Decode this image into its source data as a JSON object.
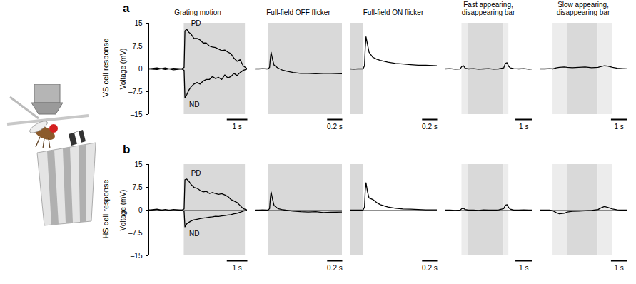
{
  "chart_data": [
    {
      "type": "line",
      "panel": "a",
      "row_label": "VS cell response",
      "title": "Grating motion",
      "y_label": "Voltage (mV)",
      "ylim": [
        -15,
        15
      ],
      "yticks": [
        15,
        7.5,
        0,
        {
          "value": -7.5,
          "label": "–7.5"
        },
        {
          "value": -15,
          "label": "–15"
        }
      ],
      "tick_labels": "y",
      "x": [
        0,
        0.4,
        0.8,
        1.2,
        1.6,
        1.72,
        1.76,
        1.85,
        1.95,
        2.05,
        2.2,
        2.35,
        2.5,
        2.65,
        2.8,
        2.95,
        3.1,
        3.25,
        3.4,
        3.55,
        3.7,
        3.85,
        4.0,
        4.15,
        4.3,
        4.45,
        4.6,
        4.8
      ],
      "series": [
        {
          "name": "PD",
          "color": "#000000",
          "values": [
            0,
            0.3,
            -0.2,
            0.2,
            0,
            0.5,
            12.5,
            13,
            12,
            11.5,
            10,
            10,
            9.5,
            8.5,
            8.5,
            7.5,
            7.2,
            7.0,
            6.5,
            6.0,
            6.2,
            5.5,
            5.0,
            3.5,
            2.5,
            3.0,
            1.0,
            0
          ]
        },
        {
          "name": "ND",
          "color": "#000000",
          "values": [
            0,
            -0.2,
            0.3,
            -0.3,
            0,
            -0.5,
            -9.5,
            -8.5,
            -7,
            -6,
            -5,
            -4.5,
            -5,
            -4,
            -3.5,
            -3.5,
            -2.5,
            -3.2,
            -2.8,
            -3.5,
            -2.0,
            -3.0,
            -2.5,
            -1.5,
            -2.2,
            -1.2,
            -0.5,
            0
          ]
        }
      ],
      "stimulus": [
        {
          "x1": 1.72,
          "x2": 4.7,
          "color": "#d9d9d9"
        }
      ],
      "scale_bar": {
        "value": 1,
        "label": "1 s"
      }
    },
    {
      "type": "line",
      "title": "Full-field OFF flicker",
      "ylim": [
        -15,
        15
      ],
      "tick_labels": false,
      "x": [
        0,
        0.05,
        0.1,
        0.15,
        0.17,
        0.19,
        0.2,
        0.21,
        0.23,
        0.25,
        0.3,
        0.35,
        0.4,
        0.5,
        0.6,
        0.7,
        0.8,
        0.9,
        1.0,
        1.15
      ],
      "series": [
        {
          "color": "#000000",
          "values": [
            0,
            0,
            0.1,
            0,
            0,
            0.5,
            3.5,
            5.5,
            3,
            1.2,
            0.3,
            -0.3,
            -0.7,
            -1.2,
            -1.5,
            -1.5,
            -1.6,
            -1.5,
            -1.5,
            -1.6
          ]
        }
      ],
      "stimulus": [
        {
          "x1": 0.17,
          "x2": 1.15,
          "color": "#d9d9d9"
        }
      ],
      "scale_bar": {
        "value": 0.2,
        "label": "0.2 s"
      }
    },
    {
      "type": "line",
      "title": "Full-field ON flicker",
      "ylim": [
        -15,
        15
      ],
      "tick_labels": false,
      "x": [
        0,
        0.05,
        0.1,
        0.15,
        0.17,
        0.19,
        0.2,
        0.21,
        0.23,
        0.25,
        0.3,
        0.35,
        0.4,
        0.5,
        0.6,
        0.7,
        0.8,
        0.9,
        1.0,
        1.15
      ],
      "series": [
        {
          "color": "#000000",
          "values": [
            0,
            -0.1,
            0,
            0,
            0,
            1,
            7,
            10.5,
            8,
            5.5,
            3.8,
            3.2,
            2.8,
            2.2,
            1.8,
            1.6,
            1.4,
            1.2,
            1.2,
            1.0
          ]
        }
      ],
      "stimulus": [
        {
          "x1": 0,
          "x2": 0.17,
          "color": "#d9d9d9"
        }
      ],
      "scale_bar": {
        "value": 0.2,
        "label": "0.2 s"
      }
    },
    {
      "type": "line",
      "title": "Fast appearing, disappearing bar",
      "ylim": [
        -15,
        15
      ],
      "tick_labels": false,
      "x": [
        0,
        0.3,
        0.6,
        0.9,
        1.0,
        1.1,
        1.2,
        1.4,
        1.7,
        2.0,
        2.3,
        2.6,
        2.9,
        3.2,
        3.5,
        3.6,
        3.7,
        3.8,
        3.9,
        4.1,
        4.4,
        4.7,
        5.0,
        5.2
      ],
      "series": [
        {
          "color": "#000000",
          "values": [
            0,
            0.1,
            -0.1,
            0,
            0.8,
            1.0,
            0.2,
            0,
            0.1,
            -0.1,
            0,
            0.1,
            -0.1,
            0,
            0.3,
            1.8,
            2.0,
            0.8,
            0.3,
            0.1,
            0,
            0.1,
            -0.1,
            0
          ]
        }
      ],
      "stimulus": [
        {
          "x1": 1.0,
          "x2": 1.4,
          "color": "#ececec"
        },
        {
          "x1": 1.4,
          "x2": 3.5,
          "color": "#d9d9d9"
        },
        {
          "x1": 3.5,
          "x2": 3.8,
          "color": "#ececec"
        }
      ],
      "scale_bar": {
        "value": 1,
        "label": "1 s"
      }
    },
    {
      "type": "line",
      "title": "Slow appearing, disappearing bar",
      "ylim": [
        -15,
        15
      ],
      "tick_labels": false,
      "x": [
        0,
        0.3,
        0.6,
        0.8,
        1.0,
        1.2,
        1.5,
        1.7,
        2.0,
        2.4,
        2.8,
        3.2,
        3.6,
        3.8,
        4.0,
        4.2,
        4.5,
        4.8,
        5.1,
        5.4
      ],
      "series": [
        {
          "color": "#000000",
          "values": [
            0,
            0,
            0.1,
            0,
            0.3,
            0.5,
            0.6,
            0.5,
            0.4,
            0.5,
            0.6,
            0.4,
            0.5,
            0.8,
            1.0,
            0.9,
            0.5,
            0.2,
            0.1,
            0
          ]
        }
      ],
      "stimulus": [
        {
          "x1": 0.8,
          "x2": 1.7,
          "color": "#ececec"
        },
        {
          "x1": 1.7,
          "x2": 3.6,
          "color": "#d9d9d9"
        },
        {
          "x1": 3.6,
          "x2": 4.5,
          "color": "#ececec"
        }
      ],
      "scale_bar": {
        "value": 1,
        "label": "1 s"
      }
    },
    {
      "type": "line",
      "panel": "b",
      "row_label": "HS cell response",
      "y_label": "Voltage (mV)",
      "ylim": [
        -15,
        15
      ],
      "yticks": [
        15,
        7.5,
        0,
        {
          "value": -7.5,
          "label": "–7.5"
        },
        {
          "value": -15,
          "label": "–15"
        }
      ],
      "tick_labels": "y",
      "x": [
        0,
        0.4,
        0.8,
        1.2,
        1.6,
        1.72,
        1.76,
        1.85,
        1.95,
        2.05,
        2.2,
        2.35,
        2.5,
        2.65,
        2.8,
        2.95,
        3.1,
        3.25,
        3.4,
        3.55,
        3.7,
        3.85,
        4.0,
        4.15,
        4.3,
        4.45,
        4.6,
        4.8
      ],
      "series": [
        {
          "name": "PD",
          "color": "#000000",
          "values": [
            0,
            0.3,
            -0.2,
            0.2,
            0,
            0.4,
            10,
            10.2,
            9.5,
            8.5,
            7.5,
            7.2,
            6.5,
            6,
            6.2,
            5.5,
            5.8,
            5.5,
            5.2,
            5.4,
            5.0,
            4.5,
            3.5,
            3.0,
            2.5,
            1.5,
            0.5,
            0
          ]
        },
        {
          "name": "ND",
          "color": "#000000",
          "values": [
            0,
            -0.2,
            0.2,
            -0.2,
            0,
            -0.4,
            -5.5,
            -4.5,
            -4,
            -3.6,
            -3.2,
            -3,
            -2.8,
            -2.6,
            -2.5,
            -2.3,
            -2.2,
            -2.0,
            -2.1,
            -1.9,
            -1.8,
            -1.6,
            -1.5,
            -1.2,
            -1.0,
            -0.7,
            -0.3,
            0
          ]
        }
      ],
      "stimulus": [
        {
          "x1": 1.72,
          "x2": 4.7,
          "color": "#d9d9d9"
        }
      ],
      "scale_bar": {
        "value": 1,
        "label": "1 s"
      }
    },
    {
      "type": "line",
      "ylim": [
        -15,
        15
      ],
      "tick_labels": false,
      "x": [
        0,
        0.05,
        0.1,
        0.15,
        0.17,
        0.19,
        0.2,
        0.21,
        0.23,
        0.25,
        0.3,
        0.35,
        0.4,
        0.5,
        0.6,
        0.7,
        0.8,
        0.9,
        1.0,
        1.15
      ],
      "series": [
        {
          "color": "#000000",
          "values": [
            0,
            0,
            0.1,
            0,
            0,
            0.5,
            4,
            6,
            3.5,
            1.5,
            0.5,
            0.2,
            0,
            -0.3,
            -0.5,
            -0.6,
            -0.5,
            -0.8,
            -0.7,
            -0.6
          ]
        }
      ],
      "stimulus": [
        {
          "x1": 0.17,
          "x2": 1.15,
          "color": "#d9d9d9"
        }
      ],
      "scale_bar": {
        "value": 0.2,
        "label": "0.2 s"
      }
    },
    {
      "type": "line",
      "ylim": [
        -15,
        15
      ],
      "tick_labels": false,
      "x": [
        0,
        0.05,
        0.1,
        0.15,
        0.17,
        0.19,
        0.2,
        0.21,
        0.23,
        0.25,
        0.3,
        0.35,
        0.4,
        0.5,
        0.6,
        0.7,
        0.8,
        0.9,
        1.0,
        1.15
      ],
      "series": [
        {
          "color": "#000000",
          "values": [
            0,
            0,
            0,
            0,
            0,
            1,
            6.5,
            9,
            6,
            4,
            3.5,
            2.5,
            1.8,
            1.0,
            0.6,
            0.4,
            0.3,
            0.2,
            0.1,
            0.1
          ]
        }
      ],
      "stimulus": [
        {
          "x1": 0,
          "x2": 0.17,
          "color": "#d9d9d9"
        }
      ],
      "scale_bar": {
        "value": 0.2,
        "label": "0.2 s"
      }
    },
    {
      "type": "line",
      "ylim": [
        -15,
        15
      ],
      "tick_labels": false,
      "x": [
        0,
        0.3,
        0.6,
        0.9,
        1.0,
        1.1,
        1.2,
        1.4,
        1.7,
        2.0,
        2.3,
        2.6,
        2.9,
        3.2,
        3.5,
        3.6,
        3.7,
        3.8,
        3.9,
        4.1,
        4.4,
        4.7,
        5.0,
        5.2
      ],
      "series": [
        {
          "color": "#000000",
          "values": [
            0,
            0,
            -0.1,
            0,
            0.5,
            0.6,
            0.2,
            0,
            0,
            -0.1,
            0.1,
            0,
            0,
            0.1,
            0.5,
            1.6,
            1.8,
            0.8,
            0.3,
            0,
            0,
            0.1,
            0,
            0
          ]
        }
      ],
      "stimulus": [
        {
          "x1": 1.0,
          "x2": 1.4,
          "color": "#ececec"
        },
        {
          "x1": 1.4,
          "x2": 3.5,
          "color": "#d9d9d9"
        },
        {
          "x1": 3.5,
          "x2": 3.8,
          "color": "#ececec"
        }
      ],
      "scale_bar": {
        "value": 1,
        "label": "1 s"
      }
    },
    {
      "type": "line",
      "ylim": [
        -15,
        15
      ],
      "tick_labels": false,
      "x": [
        0,
        0.3,
        0.6,
        0.8,
        1.0,
        1.2,
        1.5,
        1.7,
        2.0,
        2.4,
        2.8,
        3.2,
        3.6,
        3.8,
        4.0,
        4.2,
        4.5,
        4.8,
        5.1,
        5.4
      ],
      "series": [
        {
          "color": "#000000",
          "values": [
            0,
            0,
            0,
            -0.2,
            -0.8,
            -1.2,
            -1.0,
            -0.6,
            -0.4,
            -0.3,
            -0.2,
            -0.1,
            0.2,
            0.8,
            1.2,
            0.9,
            0.4,
            0.1,
            0,
            0
          ]
        }
      ],
      "stimulus": [
        {
          "x1": 0.8,
          "x2": 1.7,
          "color": "#ececec"
        },
        {
          "x1": 1.7,
          "x2": 3.6,
          "color": "#d9d9d9"
        },
        {
          "x1": 3.6,
          "x2": 4.5,
          "color": "#ececec"
        }
      ],
      "scale_bar": {
        "value": 1,
        "label": "1 s"
      }
    }
  ]
}
